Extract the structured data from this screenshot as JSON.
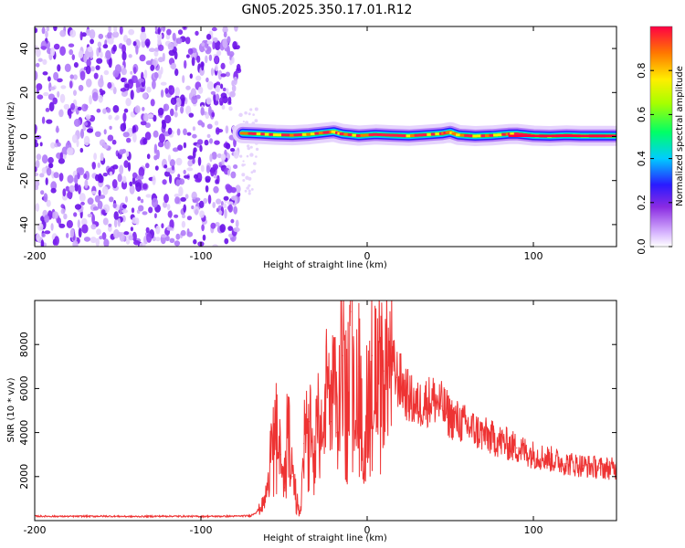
{
  "title": "GN05.2025.350.17.01.R12",
  "chart_data": [
    {
      "type": "heatmap",
      "name": "spectrogram",
      "xlabel": "Height of straight line (km)",
      "ylabel": "Frequency (Hz)",
      "xlim": [
        -200,
        150
      ],
      "ylim": [
        -50,
        50
      ],
      "xticks": [
        -200,
        -100,
        0,
        100
      ],
      "yticks": [
        -40,
        -20,
        0,
        20,
        40
      ],
      "noise_region_x": [
        -200,
        -77
      ],
      "signal_onset_x": -77,
      "ridge_x": [
        -75,
        -65,
        -55,
        -45,
        -35,
        -25,
        -20,
        -15,
        -5,
        5,
        15,
        25,
        35,
        45,
        50,
        55,
        65,
        75,
        85,
        90,
        100,
        110,
        120,
        130,
        140,
        150
      ],
      "ridge_freq": [
        1.5,
        1.2,
        0.8,
        0.6,
        1.0,
        1.8,
        2.2,
        1.2,
        0.4,
        0.9,
        0.6,
        0.3,
        0.8,
        1.3,
        2.0,
        0.7,
        0.2,
        0.5,
        1.1,
        1.2,
        0.4,
        0.2,
        0.5,
        0.3,
        0.3,
        0.3
      ],
      "colorbar": {
        "label": "Normalized spectral amplitude",
        "range": [
          0,
          1
        ],
        "ticks": [
          "0.0",
          "0.2",
          "0.4",
          "0.6",
          "0.8"
        ],
        "tick_values": [
          0.0,
          0.2,
          0.4,
          0.6,
          0.8
        ]
      }
    },
    {
      "type": "line",
      "name": "snr",
      "xlabel": "Height of straight line (km)",
      "ylabel": "SNR (10 * v/v)",
      "xlim": [
        -200,
        150
      ],
      "ylim": [
        0,
        10000
      ],
      "xticks": [
        -200,
        -100,
        0,
        100
      ],
      "yticks": [
        2000,
        4000,
        6000,
        8000
      ],
      "series": [
        {
          "name": "SNR",
          "color": "#ee3333",
          "x": [
            -200,
            -180,
            -160,
            -140,
            -120,
            -100,
            -80,
            -70,
            -65,
            -62,
            -60,
            -58,
            -55,
            -52,
            -50,
            -48,
            -45,
            -42,
            -40,
            -38,
            -35,
            -32,
            -30,
            -28,
            -25,
            -22,
            -20,
            -18,
            -15,
            -12,
            -10,
            -8,
            -5,
            -2,
            0,
            3,
            5,
            8,
            10,
            12,
            15,
            18,
            20,
            25,
            30,
            35,
            40,
            45,
            50,
            60,
            70,
            80,
            90,
            100,
            110,
            120,
            130,
            140,
            150
          ],
          "y": [
            200,
            190,
            200,
            185,
            200,
            190,
            200,
            220,
            500,
            800,
            1500,
            2800,
            4200,
            3000,
            1500,
            4500,
            2000,
            800,
            500,
            3500,
            4500,
            2500,
            5000,
            3200,
            6000,
            4500,
            6500,
            4000,
            7500,
            5500,
            9500,
            6000,
            7000,
            2200,
            5500,
            7500,
            6500,
            7000,
            6800,
            7200,
            7000,
            6500,
            6300,
            5600,
            5200,
            5400,
            5500,
            5200,
            4700,
            4300,
            3900,
            3600,
            3300,
            3000,
            2800,
            2600,
            2500,
            2400,
            2350
          ]
        }
      ]
    }
  ]
}
